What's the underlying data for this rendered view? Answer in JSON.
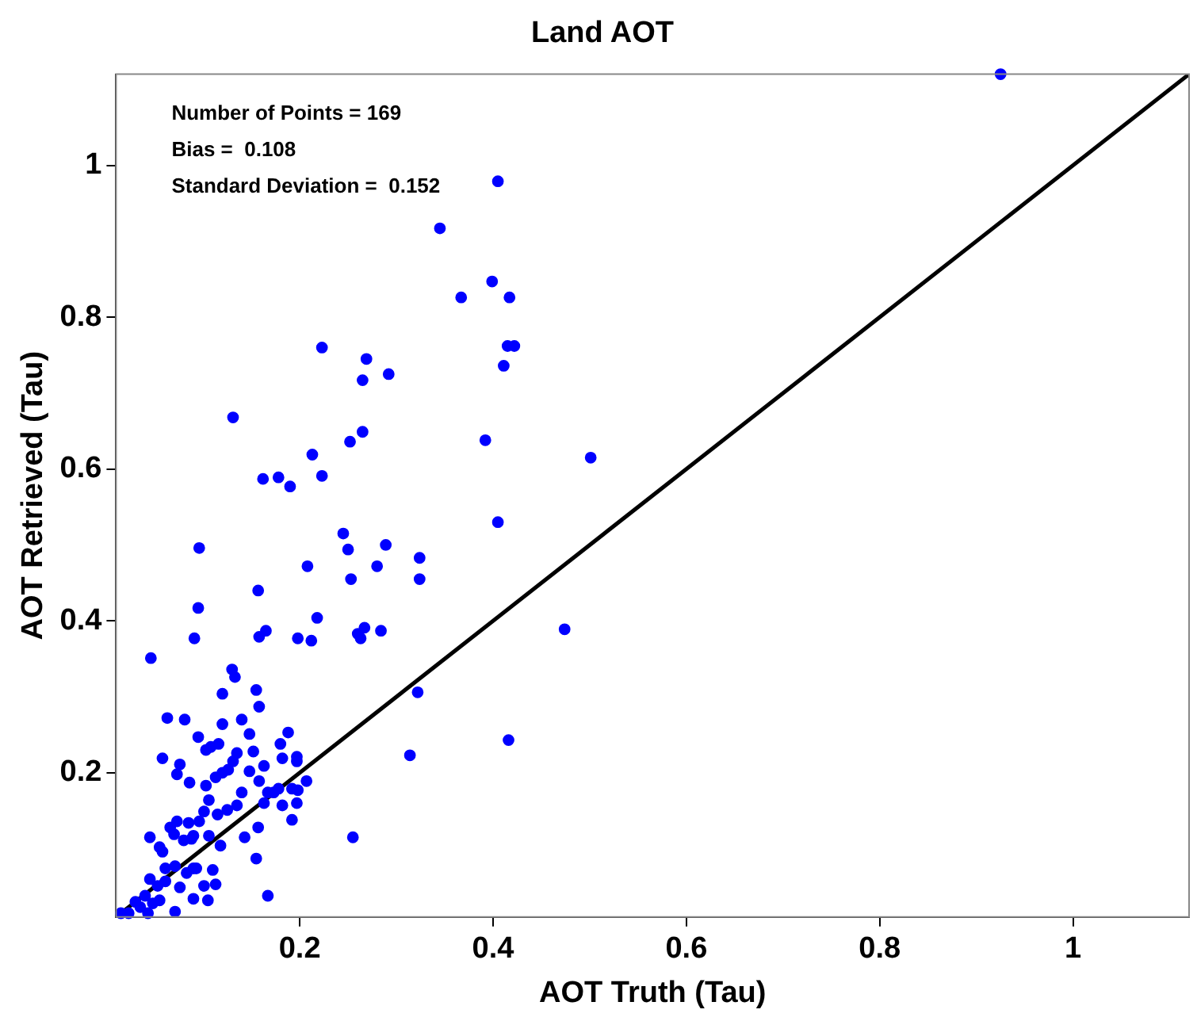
{
  "chart_data": {
    "type": "scatter",
    "title": "Land AOT",
    "xlabel": "AOT Truth (Tau)",
    "ylabel": "AOT Retrieved (Tau)",
    "annotations": [
      "Number of Points = 169",
      "Bias =  0.108",
      "Standard Deviation =  0.152"
    ],
    "xlim": [
      0.01,
      1.12
    ],
    "ylim": [
      0.01,
      1.12
    ],
    "xticks": [
      0.2,
      0.4,
      0.6,
      0.8,
      1
    ],
    "yticks": [
      0.2,
      0.4,
      0.6,
      0.8,
      1
    ],
    "grid": false,
    "legend": false,
    "marker": "circle",
    "series": [
      {
        "color": "#0000ff",
        "x": [
          0.925,
          0.405,
          0.345,
          0.399,
          0.367,
          0.417,
          0.415,
          0.422,
          0.411,
          0.223,
          0.269,
          0.265,
          0.292,
          0.265,
          0.252,
          0.213,
          0.392,
          0.501,
          0.131,
          0.162,
          0.178,
          0.19,
          0.223,
          0.405,
          0.245,
          0.25,
          0.289,
          0.28,
          0.208,
          0.253,
          0.324,
          0.324,
          0.096,
          0.157,
          0.095,
          0.218,
          0.091,
          0.158,
          0.165,
          0.198,
          0.212,
          0.26,
          0.263,
          0.267,
          0.284,
          0.474,
          0.322,
          0.416,
          0.314,
          0.046,
          0.13,
          0.133,
          0.12,
          0.155,
          0.158,
          0.063,
          0.081,
          0.12,
          0.14,
          0.148,
          0.095,
          0.188,
          0.108,
          0.116,
          0.18,
          0.152,
          0.058,
          0.076,
          0.131,
          0.163,
          0.182,
          0.197,
          0.197,
          0.073,
          0.086,
          0.103,
          0.113,
          0.12,
          0.126,
          0.148,
          0.158,
          0.167,
          0.14,
          0.135,
          0.173,
          0.178,
          0.192,
          0.163,
          0.182,
          0.197,
          0.198,
          0.207,
          0.106,
          0.101,
          0.115,
          0.125,
          0.192,
          0.255,
          0.045,
          0.066,
          0.073,
          0.085,
          0.07,
          0.08,
          0.088,
          0.09,
          0.106,
          0.055,
          0.058,
          0.118,
          0.155,
          0.061,
          0.071,
          0.083,
          0.09,
          0.093,
          0.11,
          0.101,
          0.113,
          0.045,
          0.053,
          0.061,
          0.076,
          0.09,
          0.105,
          0.03,
          0.035,
          0.04,
          0.048,
          0.055,
          0.071,
          0.043,
          0.023,
          0.015,
          0.167,
          0.157,
          0.143,
          0.096,
          0.135,
          0.103
        ],
        "values": [
          1.12,
          0.979,
          0.917,
          0.847,
          0.826,
          0.826,
          0.762,
          0.762,
          0.736,
          0.76,
          0.745,
          0.717,
          0.725,
          0.649,
          0.636,
          0.619,
          0.638,
          0.615,
          0.668,
          0.587,
          0.589,
          0.577,
          0.591,
          0.53,
          0.515,
          0.494,
          0.5,
          0.472,
          0.472,
          0.455,
          0.483,
          0.455,
          0.496,
          0.44,
          0.417,
          0.404,
          0.377,
          0.379,
          0.387,
          0.377,
          0.374,
          0.383,
          0.377,
          0.391,
          0.387,
          0.389,
          0.306,
          0.243,
          0.223,
          0.351,
          0.336,
          0.326,
          0.304,
          0.309,
          0.287,
          0.272,
          0.27,
          0.264,
          0.27,
          0.251,
          0.247,
          0.253,
          0.234,
          0.238,
          0.238,
          0.228,
          0.219,
          0.211,
          0.215,
          0.209,
          0.219,
          0.221,
          0.215,
          0.198,
          0.187,
          0.183,
          0.194,
          0.2,
          0.204,
          0.202,
          0.189,
          0.174,
          0.174,
          0.157,
          0.174,
          0.179,
          0.179,
          0.16,
          0.157,
          0.16,
          0.177,
          0.189,
          0.164,
          0.149,
          0.145,
          0.151,
          0.138,
          0.115,
          0.115,
          0.128,
          0.136,
          0.134,
          0.119,
          0.111,
          0.113,
          0.117,
          0.117,
          0.102,
          0.096,
          0.104,
          0.087,
          0.074,
          0.077,
          0.068,
          0.074,
          0.074,
          0.072,
          0.051,
          0.053,
          0.06,
          0.051,
          0.057,
          0.049,
          0.034,
          0.032,
          0.03,
          0.023,
          0.038,
          0.028,
          0.032,
          0.017,
          0.015,
          0.015,
          0.015,
          0.038,
          0.128,
          0.115,
          0.136,
          0.226,
          0.23
        ]
      },
      {
        "type": "line",
        "color": "#000000",
        "marker": "none",
        "x": [
          0.01,
          1.12
        ],
        "values": [
          0.01,
          1.12
        ]
      }
    ]
  }
}
